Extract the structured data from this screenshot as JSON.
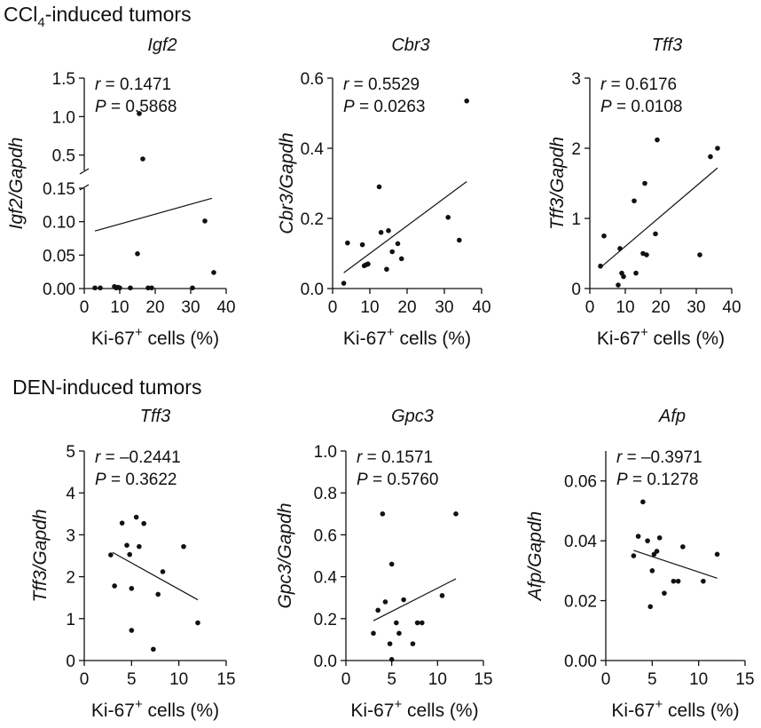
{
  "figure": {
    "section_top": {
      "prefix": "CCl",
      "sub": "4",
      "suffix": "-induced tumors"
    },
    "section_bottom": {
      "label": "DEN-induced tumors"
    }
  },
  "chart_data": [
    {
      "type": "scatter",
      "title": "Igf2",
      "xlabel": {
        "main": "Ki-67",
        "sup": "+",
        "rest": " cells (%)"
      },
      "ylabel": "Igf2/Gapdh",
      "xlim": [
        0,
        40
      ],
      "xticks": [
        "0",
        "10",
        "20",
        "30",
        "40"
      ],
      "broken_axis": true,
      "lower_ylim": [
        0,
        0.15
      ],
      "lower_yticks": [
        "0.00",
        "0.05",
        "0.10",
        "0.15"
      ],
      "upper_ylim": [
        0.3,
        1.5
      ],
      "upper_yticks": [
        "0.5",
        "1.0",
        "1.5"
      ],
      "stats": {
        "r": "0.1471",
        "p": "0.5868"
      },
      "points": [
        [
          3,
          0.001
        ],
        [
          4.5,
          0.001
        ],
        [
          8.5,
          0.003
        ],
        [
          9,
          0.001
        ],
        [
          9.5,
          0.002
        ],
        [
          10,
          0.001
        ],
        [
          13,
          0.001
        ],
        [
          15,
          0.052
        ],
        [
          15.5,
          1.04
        ],
        [
          16.5,
          0.45
        ],
        [
          18,
          0.001
        ],
        [
          19,
          0.001
        ],
        [
          30.5,
          0.001
        ],
        [
          34,
          0.101
        ],
        [
          36.5,
          0.024
        ]
      ],
      "fit": [
        [
          3,
          0.086
        ],
        [
          36,
          0.135
        ]
      ]
    },
    {
      "type": "scatter",
      "title": "Cbr3",
      "xlabel": {
        "main": "Ki-67",
        "sup": "+",
        "rest": " cells (%)"
      },
      "ylabel": "Cbr3/Gapdh",
      "xlim": [
        0,
        40
      ],
      "xticks": [
        "0",
        "10",
        "20",
        "30",
        "40"
      ],
      "ylim": [
        0,
        0.6
      ],
      "yticks": [
        "0.0",
        "0.2",
        "0.4",
        "0.6"
      ],
      "stats": {
        "r": "0.5529",
        "p": "0.0263"
      },
      "points": [
        [
          3,
          0.015
        ],
        [
          4,
          0.13
        ],
        [
          8,
          0.125
        ],
        [
          8.5,
          0.065
        ],
        [
          9,
          0.068
        ],
        [
          9.5,
          0.07
        ],
        [
          12.5,
          0.29
        ],
        [
          13,
          0.16
        ],
        [
          14.5,
          0.055
        ],
        [
          15,
          0.165
        ],
        [
          16,
          0.105
        ],
        [
          17.5,
          0.128
        ],
        [
          18.5,
          0.085
        ],
        [
          31,
          0.203
        ],
        [
          34,
          0.138
        ],
        [
          36,
          0.535
        ]
      ],
      "fit": [
        [
          3,
          0.045
        ],
        [
          36,
          0.305
        ]
      ]
    },
    {
      "type": "scatter",
      "title": "Tff3",
      "xlabel": {
        "main": "Ki-67",
        "sup": "+",
        "rest": " cells (%)"
      },
      "ylabel": "Tff3/Gapdh",
      "xlim": [
        0,
        40
      ],
      "xticks": [
        "0",
        "10",
        "20",
        "30",
        "40"
      ],
      "ylim": [
        0,
        3
      ],
      "yticks": [
        "0",
        "1",
        "2",
        "3"
      ],
      "stats": {
        "r": "0.6176",
        "p": "0.0108"
      },
      "points": [
        [
          3,
          0.32
        ],
        [
          4,
          0.75
        ],
        [
          8,
          0.05
        ],
        [
          8.5,
          0.57
        ],
        [
          9,
          0.22
        ],
        [
          9.5,
          0.17
        ],
        [
          12.5,
          1.25
        ],
        [
          13,
          0.22
        ],
        [
          15,
          0.5
        ],
        [
          15.5,
          1.5
        ],
        [
          16,
          0.48
        ],
        [
          18.5,
          0.78
        ],
        [
          19,
          2.12
        ],
        [
          31,
          0.48
        ],
        [
          34,
          1.88
        ],
        [
          36,
          2.0
        ]
      ],
      "fit": [
        [
          3,
          0.3
        ],
        [
          36,
          1.72
        ]
      ]
    },
    {
      "type": "scatter",
      "title": "Tff3",
      "xlabel": {
        "main": "Ki-67",
        "sup": "+",
        "rest": " cells (%)"
      },
      "ylabel": "Tff3/Gapdh",
      "xlim": [
        0,
        15
      ],
      "xticks": [
        "0",
        "5",
        "10",
        "15"
      ],
      "ylim": [
        0,
        5
      ],
      "yticks": [
        "0",
        "1",
        "2",
        "3",
        "4",
        "5"
      ],
      "stats": {
        "r": "–0.2441",
        "p": "0.3622"
      },
      "points": [
        [
          2.8,
          2.52
        ],
        [
          3.2,
          1.78
        ],
        [
          4,
          3.28
        ],
        [
          4.5,
          2.75
        ],
        [
          4.8,
          2.53
        ],
        [
          5,
          1.72
        ],
        [
          5,
          0.72
        ],
        [
          5.5,
          3.42
        ],
        [
          5.8,
          2.72
        ],
        [
          6.3,
          3.27
        ],
        [
          7.3,
          0.27
        ],
        [
          7.8,
          1.58
        ],
        [
          8.3,
          2.12
        ],
        [
          10.5,
          2.72
        ],
        [
          12,
          0.9
        ]
      ],
      "fit": [
        [
          3,
          2.58
        ],
        [
          12,
          1.45
        ]
      ]
    },
    {
      "type": "scatter",
      "title": "Gpc3",
      "xlabel": {
        "main": "Ki-67",
        "sup": "+",
        "rest": " cells (%)"
      },
      "ylabel": "Gpc3/Gapdh",
      "xlim": [
        0,
        15
      ],
      "xticks": [
        "0",
        "5",
        "10",
        "15"
      ],
      "ylim": [
        0,
        1.0
      ],
      "yticks": [
        "0.0",
        "0.2",
        "0.4",
        "0.6",
        "0.8",
        "1.0"
      ],
      "stats": {
        "r": "0.1571",
        "p": "0.5760"
      },
      "points": [
        [
          3,
          0.13
        ],
        [
          3.5,
          0.24
        ],
        [
          4,
          0.7
        ],
        [
          4.3,
          0.28
        ],
        [
          4.8,
          0.08
        ],
        [
          5,
          0.46
        ],
        [
          5,
          0.005
        ],
        [
          5.5,
          0.18
        ],
        [
          5.8,
          0.13
        ],
        [
          6.3,
          0.29
        ],
        [
          7.3,
          0.08
        ],
        [
          7.8,
          0.18
        ],
        [
          8.3,
          0.18
        ],
        [
          10.5,
          0.31
        ],
        [
          12,
          0.7
        ]
      ],
      "fit": [
        [
          3,
          0.19
        ],
        [
          12,
          0.39
        ]
      ]
    },
    {
      "type": "scatter",
      "title": "Afp",
      "xlabel": {
        "main": "Ki-67",
        "sup": "+",
        "rest": " cells (%)"
      },
      "ylabel": "Afp/Gapdh",
      "xlim": [
        0,
        15
      ],
      "xticks": [
        "0",
        "5",
        "10",
        "15"
      ],
      "ylim": [
        0,
        0.07
      ],
      "yticks": [
        "0.00",
        "0.02",
        "0.04",
        "0.06"
      ],
      "stats": {
        "r": "–0.3971",
        "p": "0.1278"
      },
      "points": [
        [
          3,
          0.035
        ],
        [
          3.5,
          0.0415
        ],
        [
          4,
          0.053
        ],
        [
          4.5,
          0.04
        ],
        [
          4.8,
          0.018
        ],
        [
          5,
          0.03
        ],
        [
          5.2,
          0.0355
        ],
        [
          5.5,
          0.0365
        ],
        [
          5.8,
          0.041
        ],
        [
          6.3,
          0.0225
        ],
        [
          7.3,
          0.0265
        ],
        [
          7.8,
          0.0265
        ],
        [
          8.3,
          0.038
        ],
        [
          10.5,
          0.0265
        ],
        [
          12,
          0.0355
        ]
      ],
      "fit": [
        [
          3,
          0.0368
        ],
        [
          12,
          0.0275
        ]
      ]
    }
  ]
}
